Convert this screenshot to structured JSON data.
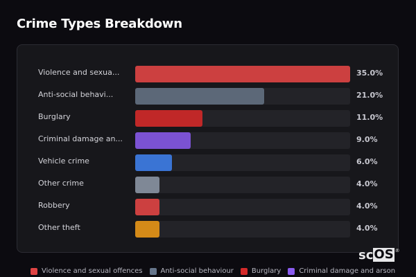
{
  "header": {
    "title": "Crime Types Breakdown"
  },
  "chart_data": {
    "type": "bar",
    "orientation": "horizontal",
    "title": "Crime Types Breakdown",
    "xlabel": "",
    "ylabel": "",
    "grid": false,
    "legend_position": "bottom",
    "categories": [
      "Violence and sexual offences",
      "Anti-social behaviour",
      "Burglary",
      "Criminal damage and arson",
      "Vehicle crime",
      "Other crime",
      "Robbery",
      "Other theft"
    ],
    "display_labels": [
      "Violence and sexua...",
      "Anti-social behavi...",
      "Burglary",
      "Criminal damage an...",
      "Vehicle crime",
      "Other crime",
      "Robbery",
      "Other theft"
    ],
    "values": [
      35.0,
      21.0,
      11.0,
      9.0,
      6.0,
      4.0,
      4.0,
      4.0
    ],
    "value_labels": [
      "35.0%",
      "21.0%",
      "11.0%",
      "9.0%",
      "6.0%",
      "4.0%",
      "4.0%",
      "4.0%"
    ],
    "colors": [
      "#cc4040",
      "#5c6878",
      "#c02828",
      "#7b52d3",
      "#3a74d4",
      "#7f8896",
      "#cc4040",
      "#d48a18"
    ],
    "xlim": [
      0,
      35
    ]
  },
  "rows": [
    {
      "label": "Violence and sexua...",
      "value": "35.0%",
      "pct": 35.0,
      "color": "#cc4040"
    },
    {
      "label": "Anti-social behavi...",
      "value": "21.0%",
      "pct": 21.0,
      "color": "#5c6878"
    },
    {
      "label": "Burglary",
      "value": "11.0%",
      "pct": 11.0,
      "color": "#c02828"
    },
    {
      "label": "Criminal damage an...",
      "value": "9.0%",
      "pct": 9.0,
      "color": "#7b52d3"
    },
    {
      "label": "Vehicle crime",
      "value": "6.0%",
      "pct": 6.0,
      "color": "#3a74d4"
    },
    {
      "label": "Other crime",
      "value": "4.0%",
      "pct": 4.0,
      "color": "#7f8896"
    },
    {
      "label": "Robbery",
      "value": "4.0%",
      "pct": 4.0,
      "color": "#cc4040"
    },
    {
      "label": "Other theft",
      "value": "4.0%",
      "pct": 4.0,
      "color": "#d48a18"
    }
  ],
  "legend": [
    {
      "label": "Violence and sexual offences",
      "color": "#e04444"
    },
    {
      "label": "Anti-social behaviour",
      "color": "#66768c"
    },
    {
      "label": "Burglary",
      "color": "#d42a2a"
    },
    {
      "label": "Criminal damage and arson",
      "color": "#8a5cf0"
    }
  ],
  "watermark": {
    "sc": "sc",
    "os": "OS",
    "reg": "®"
  }
}
